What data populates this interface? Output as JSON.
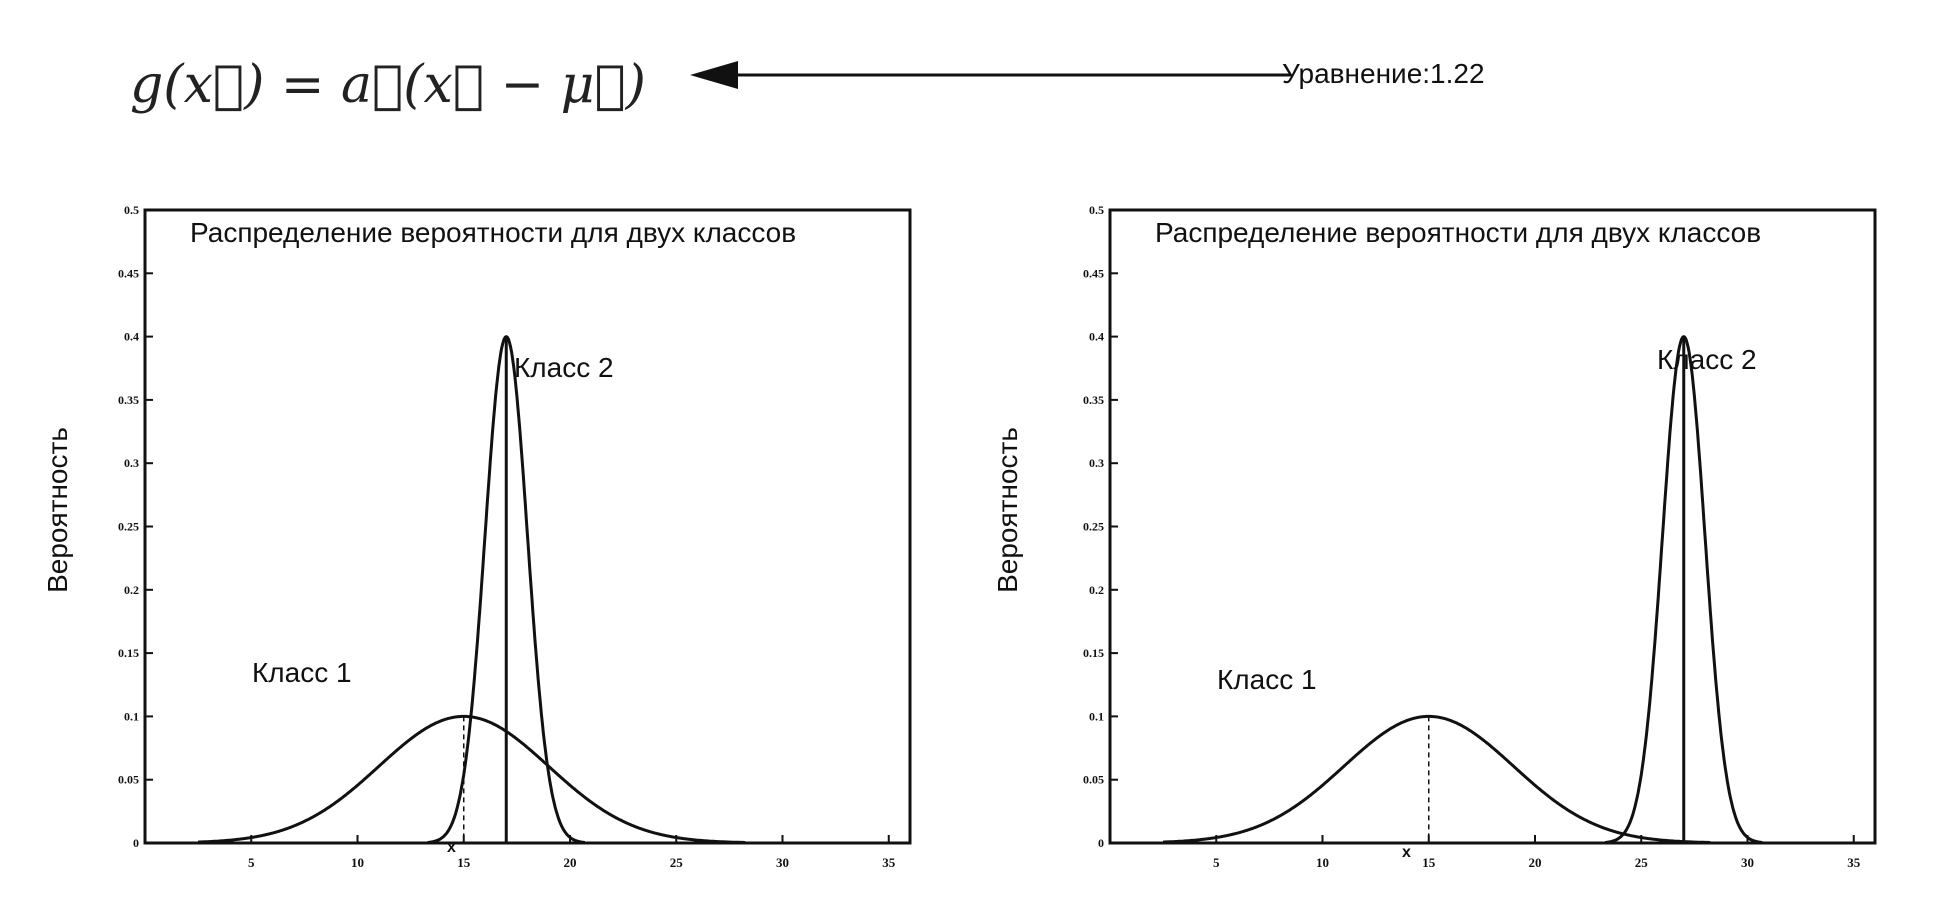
{
  "equation": {
    "text": "g(x⃗) = a⃗(x⃗ − μ⃗)",
    "label": "Уравнение:1.22"
  },
  "chart_data": [
    {
      "type": "line",
      "title": "Распределение вероятности для двух классов",
      "xlabel": "x",
      "ylabel": "Вероятность",
      "xlim": [
        0,
        36
      ],
      "ylim": [
        0,
        0.5
      ],
      "x_ticks": [
        5,
        10,
        15,
        20,
        25,
        30,
        35
      ],
      "x_tick_labels": [
        "5",
        "10",
        "15",
        "20",
        "25",
        "30",
        "35"
      ],
      "y_ticks": [
        0,
        0.05,
        0.1,
        0.15,
        0.2,
        0.25,
        0.3,
        0.35,
        0.4,
        0.45,
        0.5
      ],
      "y_tick_labels": [
        "0",
        "0.05",
        "0.1",
        "0.15",
        "0.2",
        "0.25",
        "0.3",
        "0.35",
        "0.4",
        "0.45",
        "0.5"
      ],
      "series": [
        {
          "name": "Класс 1",
          "distribution": "normal",
          "mean": 15,
          "std": 3.99,
          "peak": 0.1
        },
        {
          "name": "Класс 2",
          "distribution": "normal",
          "mean": 17,
          "std": 1.0,
          "peak": 0.4
        }
      ],
      "boundary_x": 17,
      "grid": false,
      "color": "#111111"
    },
    {
      "type": "line",
      "title": "Распределение вероятности для двух классов",
      "xlabel": "x",
      "ylabel": "Вероятность",
      "xlim": [
        0,
        36
      ],
      "ylim": [
        0,
        0.5
      ],
      "x_ticks": [
        5,
        10,
        15,
        20,
        25,
        30,
        35
      ],
      "x_tick_labels": [
        "5",
        "10",
        "15",
        "20",
        "25",
        "30",
        "35"
      ],
      "y_ticks": [
        0,
        0.05,
        0.1,
        0.15,
        0.2,
        0.25,
        0.3,
        0.35,
        0.4,
        0.45,
        0.5
      ],
      "y_tick_labels": [
        "0",
        "0.05",
        "0.1",
        "0.15",
        "0.2",
        "0.25",
        "0.3",
        "0.35",
        "0.4",
        "0.45",
        "0.5"
      ],
      "series": [
        {
          "name": "Класс 1",
          "distribution": "normal",
          "mean": 15,
          "std": 3.99,
          "peak": 0.1
        },
        {
          "name": "Класс 2",
          "distribution": "normal",
          "mean": 27,
          "std": 1.0,
          "peak": 0.4
        }
      ],
      "boundary_x": 27,
      "grid": false,
      "color": "#111111"
    }
  ]
}
